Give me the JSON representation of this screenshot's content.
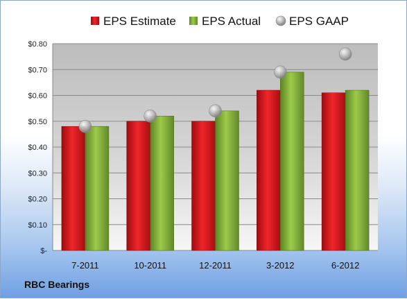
{
  "company": "RBC Bearings",
  "colors": {
    "estimate": "#e0141a",
    "actual": "#86b03a",
    "gaap": "#b8b8b8",
    "plot_top": "#bdbdbd",
    "plot_bottom": "#f4f4f4"
  },
  "chart_data": {
    "type": "bar",
    "categories": [
      "7-2011",
      "10-2011",
      "12-2011",
      "3-2012",
      "6-2012"
    ],
    "series": [
      {
        "name": "EPS Estimate",
        "type": "bar",
        "values": [
          0.48,
          0.5,
          0.5,
          0.62,
          0.61
        ]
      },
      {
        "name": "EPS Actual",
        "type": "bar",
        "values": [
          0.48,
          0.52,
          0.54,
          0.69,
          0.62
        ]
      },
      {
        "name": "EPS GAAP",
        "type": "scatter",
        "values": [
          0.48,
          0.52,
          0.54,
          0.69,
          0.76
        ]
      }
    ],
    "y_ticks": [
      "$-",
      "$0.10",
      "$0.20",
      "$0.30",
      "$0.40",
      "$0.50",
      "$0.60",
      "$0.70",
      "$0.80"
    ],
    "ylim": [
      0,
      0.8
    ],
    "grid": true,
    "legend_position": "top"
  }
}
